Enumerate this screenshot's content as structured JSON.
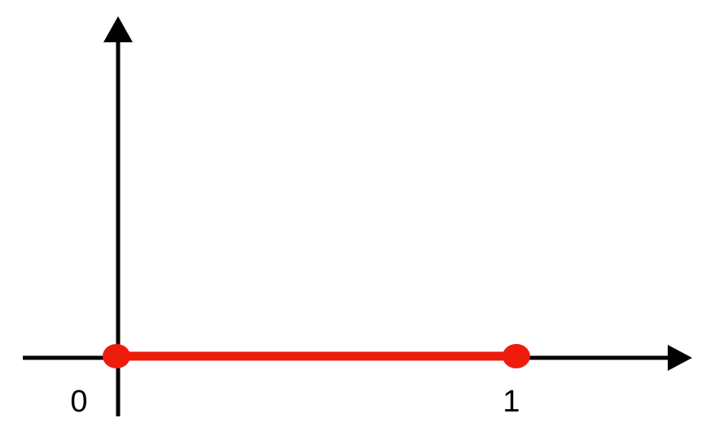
{
  "diagram": {
    "tick_labels": {
      "origin": "0",
      "one": "1"
    },
    "segment": {
      "from": 0,
      "to": 1
    },
    "colors": {
      "axes": "#000000",
      "segment": "#ee1c0c",
      "background": "#ffffff"
    }
  }
}
